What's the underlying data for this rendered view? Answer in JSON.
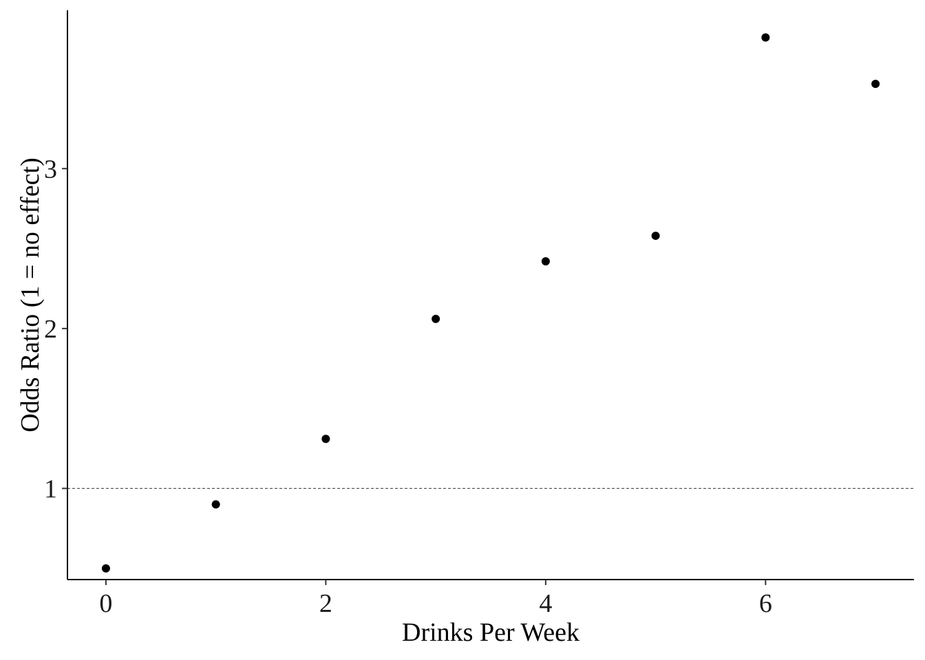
{
  "chart_data": {
    "type": "scatter",
    "title": "",
    "xlabel": "Drinks Per Week",
    "ylabel": "Odds Ratio (1 = no effect)",
    "xlim": [
      -0.35,
      7.35
    ],
    "ylim": [
      0.43,
      3.99
    ],
    "x_ticks": [
      0,
      2,
      4,
      6
    ],
    "y_ticks": [
      1,
      2,
      3
    ],
    "x_tick_labels": [
      "0",
      "2",
      "4",
      "6"
    ],
    "y_tick_labels": [
      "1",
      "2",
      "3"
    ],
    "reference_line": {
      "y": 1,
      "style": "dashed"
    },
    "grid": false,
    "legend": "none",
    "point_color": "#000000",
    "series": [
      {
        "x": [
          0,
          1,
          2,
          3,
          4,
          5,
          6,
          7
        ],
        "y": [
          0.5,
          0.9,
          1.31,
          2.06,
          2.42,
          2.58,
          3.82,
          3.53
        ]
      }
    ]
  }
}
